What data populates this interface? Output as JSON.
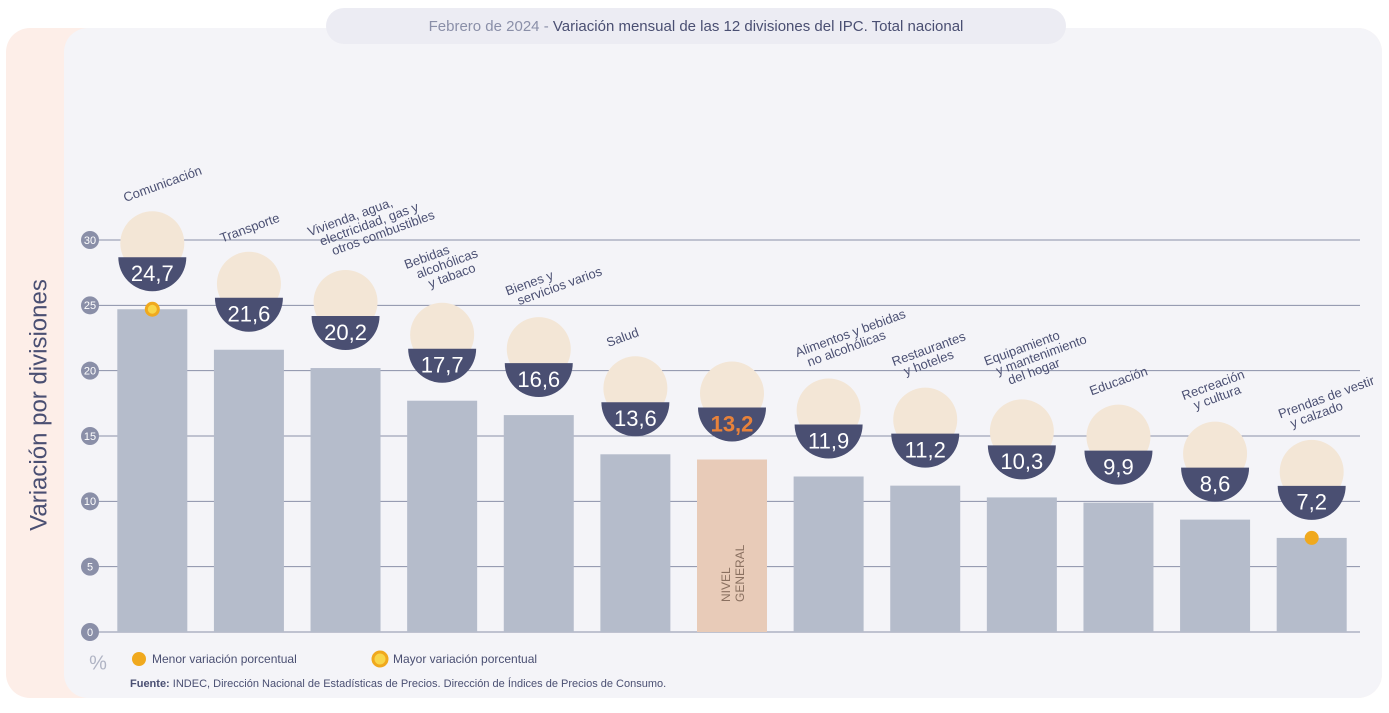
{
  "chart_data": {
    "type": "bar",
    "title_date": "Febrero de 2024",
    "title_separator": " - ",
    "title": "Variación mensual de las 12 divisiones del IPC. Total nacional",
    "y_label": "Variación por divisiones",
    "y_unit": "%",
    "categories": [
      "Comunicación",
      "Transporte",
      "Vivienda, agua,\nelectricidad, gas y\notros combustibles",
      "Bebidas\nalcohólicas\ny tabaco",
      "Bienes y\nservicios varios",
      "Salud",
      "NIVEL\nGENERAL",
      "Alimentos y bebidas\nno alcohólicas",
      "Restaurantes\ny hoteles",
      "Equipamiento\ny mantenimiento\ndel hogar",
      "Educación",
      "Recreación\ny cultura",
      "Prendas de vestir\ny calzado"
    ],
    "values": [
      24.7,
      21.6,
      20.2,
      17.7,
      16.6,
      13.6,
      13.2,
      11.9,
      11.2,
      10.3,
      9.9,
      8.6,
      7.2
    ],
    "value_labels": [
      "24,7",
      "21,6",
      "20,2",
      "17,7",
      "16,6",
      "13,6",
      "13,2",
      "11,9",
      "11,2",
      "10,3",
      "9,9",
      "8,6",
      "7,2"
    ],
    "colors": [
      "#b5bccb",
      "#b5bccb",
      "#b5bccb",
      "#b5bccb",
      "#b5bccb",
      "#b5bccb",
      "#e8cbb8",
      "#b5bccb",
      "#b5bccb",
      "#b5bccb",
      "#b5bccb",
      "#b5bccb",
      "#b5bccb"
    ],
    "ylim": [
      0,
      30
    ],
    "yticks": [
      0,
      5,
      10,
      15,
      20,
      25,
      30
    ],
    "grid": true,
    "legend": [
      {
        "name": "Menor variación porcentual",
        "color": "#f0a91e"
      },
      {
        "name": "Mayor variación porcentual",
        "color": "#f0a91e"
      }
    ],
    "source_label": "Fuente:",
    "source": "INDEC, Dirección Nacional de Estadísticas de Precios. Dirección de Índices de Precios de Consumo."
  }
}
